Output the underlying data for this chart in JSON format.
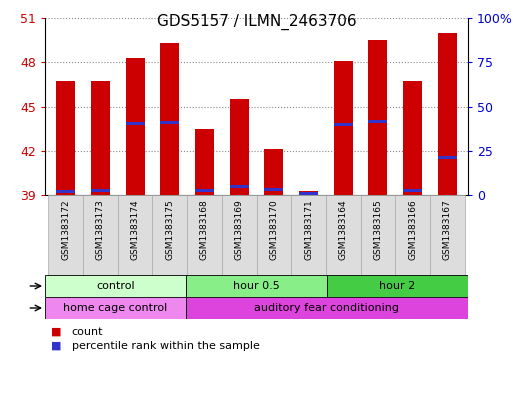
{
  "title": "GDS5157 / ILMN_2463706",
  "samples": [
    "GSM1383172",
    "GSM1383173",
    "GSM1383174",
    "GSM1383175",
    "GSM1383168",
    "GSM1383169",
    "GSM1383170",
    "GSM1383171",
    "GSM1383164",
    "GSM1383165",
    "GSM1383166",
    "GSM1383167"
  ],
  "count_values": [
    46.7,
    46.7,
    48.3,
    49.3,
    43.5,
    45.5,
    42.1,
    39.3,
    48.1,
    49.5,
    46.7,
    50.0
  ],
  "percentile_values": [
    2.0,
    2.5,
    40.5,
    41.0,
    2.5,
    5.0,
    3.0,
    0.5,
    40.0,
    41.5,
    2.5,
    21.0
  ],
  "y_min": 39,
  "y_max": 51,
  "y_ticks_left": [
    39,
    42,
    45,
    48,
    51
  ],
  "y_ticks_right_vals": [
    0,
    25,
    50,
    75,
    100
  ],
  "y_ticks_right_labels": [
    "0",
    "25",
    "50",
    "75",
    "100%"
  ],
  "bar_color": "#cc0000",
  "percentile_color": "#3333cc",
  "grid_color": "#888888",
  "title_fontsize": 11,
  "time_groups": [
    {
      "label": "control",
      "start": 0,
      "end": 4,
      "color": "#ccffcc"
    },
    {
      "label": "hour 0.5",
      "start": 4,
      "end": 8,
      "color": "#88ee88"
    },
    {
      "label": "hour 2",
      "start": 8,
      "end": 12,
      "color": "#44cc44"
    }
  ],
  "protocol_groups": [
    {
      "label": "home cage control",
      "start": 0,
      "end": 4,
      "color": "#ee88ee"
    },
    {
      "label": "auditory fear conditioning",
      "start": 4,
      "end": 12,
      "color": "#dd44dd"
    }
  ],
  "legend_count_label": "count",
  "legend_percentile_label": "percentile rank within the sample",
  "bar_width": 0.55,
  "spine_color": "#000000",
  "tick_color_left": "#cc0000",
  "tick_color_right": "#0000cc",
  "label_box_color": "#dddddd",
  "label_box_edge": "#aaaaaa"
}
